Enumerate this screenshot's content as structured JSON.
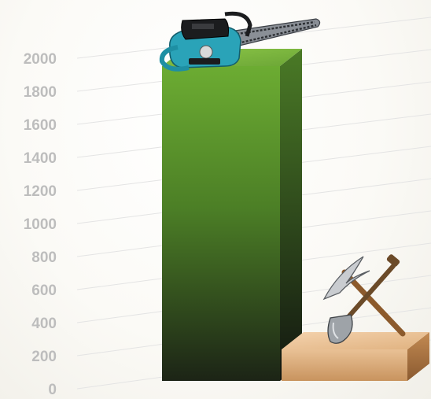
{
  "chart_data": {
    "type": "bar",
    "title": "",
    "xlabel": "",
    "ylabel": "",
    "ylim": [
      0,
      2000
    ],
    "yticks": [
      0,
      200,
      400,
      600,
      800,
      1000,
      1200,
      1400,
      1600,
      1800,
      2000
    ],
    "grid": true,
    "legend": "none",
    "categories": [
      "chainsaw",
      "pickaxe and shovel"
    ],
    "values": [
      2000,
      200
    ],
    "bar_colors": [
      "#5e9a2c",
      "#deb487"
    ],
    "bar_icons": [
      "chainsaw-icon",
      "pickaxe-shovel-icon"
    ]
  }
}
